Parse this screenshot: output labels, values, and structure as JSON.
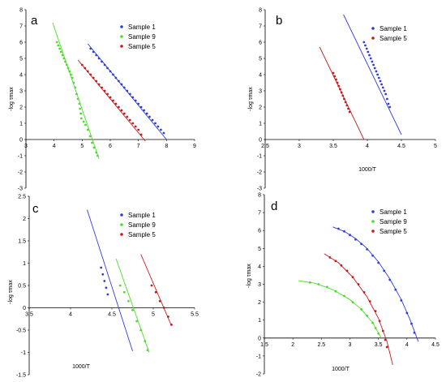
{
  "chart_data": [
    {
      "type": "scatter",
      "panel_label": "a",
      "xlabel": "",
      "ylabel": "-log τmax",
      "xlim": [
        3,
        9
      ],
      "ylim": [
        -3,
        8
      ],
      "xticks": [
        "3",
        "4",
        "5",
        "6",
        "7",
        "8",
        "9"
      ],
      "yticks": [
        "-3",
        "-2",
        "-1",
        "0",
        "1",
        "2",
        "3",
        "4",
        "5",
        "6",
        "7",
        "8"
      ],
      "legend": "top-right",
      "series": [
        {
          "name": "Sample 1",
          "color": "#2f3fd6",
          "points": [
            [
              5.3,
              5.6
            ],
            [
              5.4,
              5.4
            ],
            [
              5.5,
              5.2
            ],
            [
              5.6,
              5.0
            ],
            [
              5.7,
              4.8
            ],
            [
              5.8,
              4.6
            ],
            [
              5.9,
              4.4
            ],
            [
              6.0,
              4.2
            ],
            [
              6.1,
              4.0
            ],
            [
              6.2,
              3.8
            ],
            [
              6.3,
              3.6
            ],
            [
              6.4,
              3.4
            ],
            [
              6.5,
              3.2
            ],
            [
              6.6,
              3.0
            ],
            [
              6.7,
              2.8
            ],
            [
              6.8,
              2.6
            ],
            [
              6.9,
              2.4
            ],
            [
              7.0,
              2.2
            ],
            [
              7.1,
              2.0
            ],
            [
              7.2,
              1.8
            ],
            [
              7.3,
              1.6
            ],
            [
              7.4,
              1.4
            ],
            [
              7.5,
              1.2
            ],
            [
              7.6,
              1.0
            ],
            [
              7.7,
              0.8
            ],
            [
              7.8,
              0.6
            ],
            [
              7.9,
              0.4
            ]
          ],
          "fit": [
            [
              5.2,
              5.9
            ],
            [
              8.0,
              0.0
            ]
          ]
        },
        {
          "name": "Sample 9",
          "color": "#4ddc2a",
          "points": [
            [
              4.1,
              6.0
            ],
            [
              4.15,
              5.8
            ],
            [
              4.2,
              5.6
            ],
            [
              4.25,
              5.4
            ],
            [
              4.3,
              5.2
            ],
            [
              4.35,
              5.0
            ],
            [
              4.4,
              4.8
            ],
            [
              4.45,
              4.6
            ],
            [
              4.5,
              4.4
            ],
            [
              4.55,
              4.2
            ],
            [
              4.6,
              4.0
            ],
            [
              4.65,
              3.8
            ],
            [
              4.7,
              3.5
            ],
            [
              4.75,
              3.2
            ],
            [
              4.8,
              2.8
            ],
            [
              4.85,
              2.5
            ],
            [
              4.9,
              2.2
            ],
            [
              4.92,
              1.9
            ],
            [
              4.95,
              1.6
            ],
            [
              4.97,
              1.3
            ],
            [
              5.05,
              1.1
            ],
            [
              5.12,
              0.9
            ],
            [
              5.2,
              0.6
            ],
            [
              5.28,
              0.2
            ],
            [
              5.35,
              -0.2
            ],
            [
              5.42,
              -0.5
            ],
            [
              5.5,
              -0.8
            ],
            [
              5.55,
              -1.0
            ]
          ],
          "fit": [
            [
              3.95,
              7.2
            ],
            [
              5.6,
              -1.2
            ]
          ]
        },
        {
          "name": "Sample 5",
          "color": "#c41c1c",
          "points": [
            [
              5.0,
              4.6
            ],
            [
              5.1,
              4.4
            ],
            [
              5.2,
              4.2
            ],
            [
              5.3,
              4.0
            ],
            [
              5.4,
              3.8
            ],
            [
              5.5,
              3.6
            ],
            [
              5.6,
              3.4
            ],
            [
              5.7,
              3.2
            ],
            [
              5.8,
              3.0
            ],
            [
              5.9,
              2.8
            ],
            [
              6.0,
              2.6
            ],
            [
              6.1,
              2.4
            ],
            [
              6.2,
              2.2
            ],
            [
              6.3,
              2.0
            ],
            [
              6.4,
              1.8
            ],
            [
              6.5,
              1.6
            ],
            [
              6.6,
              1.4
            ],
            [
              6.7,
              1.2
            ],
            [
              6.8,
              1.0
            ],
            [
              6.9,
              0.8
            ],
            [
              7.0,
              0.6
            ],
            [
              7.1,
              0.3
            ]
          ],
          "fit": [
            [
              4.85,
              4.9
            ],
            [
              7.25,
              -0.1
            ]
          ]
        }
      ]
    },
    {
      "type": "scatter",
      "panel_label": "b",
      "xlabel": "1000/T",
      "ylabel": "-log τmax",
      "xlim": [
        2.5,
        5
      ],
      "ylim": [
        -3,
        8
      ],
      "xticks": [
        "2.5",
        "3",
        "3.5",
        "4",
        "4.5",
        "5"
      ],
      "yticks": [
        "-3",
        "-2",
        "-1",
        "0",
        "1",
        "2",
        "3",
        "4",
        "5",
        "6",
        "7",
        "8"
      ],
      "legend": "top-right",
      "series": [
        {
          "name": "Sample 1",
          "color": "#2f3fd6",
          "points": [
            [
              3.95,
              6.0
            ],
            [
              3.97,
              5.8
            ],
            [
              3.99,
              5.6
            ],
            [
              4.01,
              5.4
            ],
            [
              4.03,
              5.2
            ],
            [
              4.05,
              5.0
            ],
            [
              4.07,
              4.8
            ],
            [
              4.09,
              4.6
            ],
            [
              4.11,
              4.4
            ],
            [
              4.13,
              4.2
            ],
            [
              4.15,
              4.0
            ],
            [
              4.17,
              3.8
            ],
            [
              4.19,
              3.6
            ],
            [
              4.21,
              3.4
            ],
            [
              4.23,
              3.2
            ],
            [
              4.25,
              3.0
            ],
            [
              4.27,
              2.8
            ],
            [
              4.29,
              2.5
            ],
            [
              4.31,
              2.2
            ],
            [
              4.33,
              2.0
            ]
          ],
          "fit": [
            [
              3.65,
              7.7
            ],
            [
              4.5,
              0.3
            ]
          ]
        },
        {
          "name": "Sample 5",
          "color": "#c41c1c",
          "points": [
            [
              3.5,
              4.1
            ],
            [
              3.52,
              3.9
            ],
            [
              3.54,
              3.7
            ],
            [
              3.56,
              3.5
            ],
            [
              3.58,
              3.3
            ],
            [
              3.6,
              3.1
            ],
            [
              3.62,
              2.9
            ],
            [
              3.64,
              2.7
            ],
            [
              3.66,
              2.5
            ],
            [
              3.68,
              2.3
            ],
            [
              3.7,
              2.1
            ],
            [
              3.72,
              1.9
            ],
            [
              3.74,
              1.7
            ]
          ],
          "fit": [
            [
              3.3,
              5.7
            ],
            [
              3.95,
              0.0
            ]
          ]
        }
      ]
    },
    {
      "type": "scatter",
      "panel_label": "c",
      "xlabel": "1000/T",
      "ylabel": "-log τmax",
      "xlim": [
        3.5,
        5.5
      ],
      "ylim": [
        -1.5,
        2.5
      ],
      "xticks": [
        "3.5",
        "4",
        "4.5",
        "5",
        "5.5"
      ],
      "yticks": [
        "-1.5",
        "-1",
        "-0.5",
        "0",
        "0.5",
        "1",
        "1.5",
        "2",
        "2.5"
      ],
      "legend": "top-right",
      "series": [
        {
          "name": "Sample 1",
          "color": "#2f3fd6",
          "points": [
            [
              4.37,
              0.9
            ],
            [
              4.39,
              0.75
            ],
            [
              4.41,
              0.6
            ],
            [
              4.43,
              0.45
            ],
            [
              4.45,
              0.3
            ]
          ],
          "fit": [
            [
              4.2,
              2.2
            ],
            [
              4.75,
              -0.97
            ]
          ]
        },
        {
          "name": "Sample 9",
          "color": "#4ddc2a",
          "points": [
            [
              4.6,
              0.5
            ],
            [
              4.65,
              0.35
            ],
            [
              4.7,
              0.15
            ],
            [
              4.75,
              -0.05
            ],
            [
              4.8,
              -0.3
            ],
            [
              4.85,
              -0.5
            ],
            [
              4.9,
              -0.75
            ],
            [
              4.93,
              -0.95
            ]
          ],
          "fit": [
            [
              4.55,
              1.1
            ],
            [
              4.95,
              -1.0
            ]
          ]
        },
        {
          "name": "Sample 5",
          "color": "#c41c1c",
          "points": [
            [
              4.98,
              0.5
            ],
            [
              5.03,
              0.35
            ],
            [
              5.08,
              0.15
            ],
            [
              5.13,
              0.0
            ],
            [
              5.18,
              -0.2
            ],
            [
              5.22,
              -0.38
            ]
          ],
          "fit": [
            [
              4.85,
              1.2
            ],
            [
              5.22,
              -0.4
            ]
          ]
        }
      ]
    },
    {
      "type": "scatter",
      "panel_label": "d",
      "xlabel": "1000/T",
      "ylabel": "-log τmax",
      "xlim": [
        1.5,
        4.5
      ],
      "ylim": [
        -2,
        8
      ],
      "xticks": [
        "1.5",
        "2",
        "2.5",
        "3",
        "3.5",
        "4",
        "4.5"
      ],
      "yticks": [
        "-2",
        "-1",
        "0",
        "1",
        "2",
        "3",
        "4",
        "5",
        "6",
        "7",
        "8"
      ],
      "legend": "top-right",
      "series": [
        {
          "name": "Sample 1",
          "color": "#2f3fd6",
          "points": [
            [
              2.8,
              6.1
            ],
            [
              2.9,
              5.95
            ],
            [
              3.0,
              5.75
            ],
            [
              3.1,
              5.5
            ],
            [
              3.2,
              5.25
            ],
            [
              3.3,
              4.95
            ],
            [
              3.4,
              4.6
            ],
            [
              3.5,
              4.2
            ],
            [
              3.6,
              3.75
            ],
            [
              3.7,
              3.25
            ],
            [
              3.8,
              2.7
            ],
            [
              3.9,
              2.1
            ],
            [
              4.0,
              1.4
            ],
            [
              4.08,
              0.8
            ],
            [
              4.13,
              0.3
            ]
          ],
          "fit": [
            [
              2.7,
              6.2
            ],
            [
              2.9,
              5.95
            ],
            [
              3.1,
              5.55
            ],
            [
              3.3,
              5.0
            ],
            [
              3.5,
              4.25
            ],
            [
              3.7,
              3.3
            ],
            [
              3.9,
              2.15
            ],
            [
              4.05,
              1.05
            ],
            [
              4.2,
              -0.2
            ]
          ]
        },
        {
          "name": "Sample 9",
          "color": "#4ddc2a",
          "points": [
            [
              2.3,
              3.1
            ],
            [
              2.45,
              3.0
            ],
            [
              2.6,
              2.85
            ],
            [
              2.75,
              2.6
            ],
            [
              2.9,
              2.35
            ],
            [
              3.05,
              2.0
            ],
            [
              3.2,
              1.6
            ],
            [
              3.3,
              1.25
            ],
            [
              3.4,
              0.85
            ],
            [
              3.45,
              0.55
            ],
            [
              3.5,
              0.25
            ]
          ],
          "fit": [
            [
              2.1,
              3.2
            ],
            [
              2.4,
              3.05
            ],
            [
              2.7,
              2.7
            ],
            [
              3.0,
              2.15
            ],
            [
              3.2,
              1.6
            ],
            [
              3.4,
              0.85
            ],
            [
              3.55,
              0.0
            ]
          ]
        },
        {
          "name": "Sample 5",
          "color": "#c41c1c",
          "points": [
            [
              2.65,
              4.5
            ],
            [
              2.75,
              4.3
            ],
            [
              2.85,
              4.05
            ],
            [
              2.95,
              3.75
            ],
            [
              3.05,
              3.4
            ],
            [
              3.15,
              3.0
            ],
            [
              3.25,
              2.55
            ],
            [
              3.35,
              2.05
            ],
            [
              3.45,
              1.5
            ],
            [
              3.52,
              0.95
            ],
            [
              3.58,
              0.4
            ],
            [
              3.62,
              -0.1
            ],
            [
              3.65,
              -0.5
            ]
          ],
          "fit": [
            [
              2.55,
              4.7
            ],
            [
              2.8,
              4.2
            ],
            [
              3.05,
              3.4
            ],
            [
              3.3,
              2.3
            ],
            [
              3.5,
              1.1
            ],
            [
              3.65,
              -0.2
            ],
            [
              3.75,
              -1.5
            ]
          ]
        }
      ]
    }
  ]
}
